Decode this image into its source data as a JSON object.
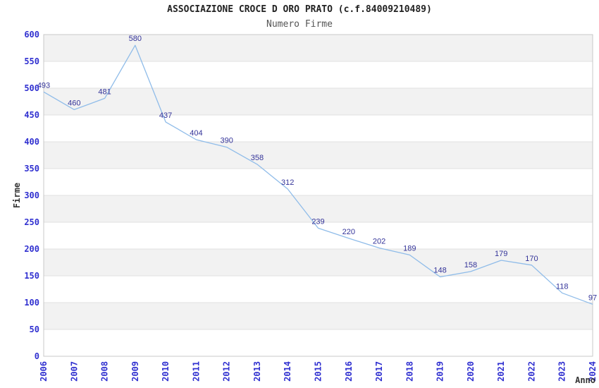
{
  "title": {
    "text": "ASSOCIAZIONE CROCE D ORO PRATO (c.f.84009210489)",
    "color": "#222222"
  },
  "subtitle": {
    "text": "Numero Firme",
    "color": "#555555"
  },
  "chart_data": {
    "type": "line",
    "x": [
      2006,
      2007,
      2008,
      2009,
      2010,
      2011,
      2012,
      2013,
      2014,
      2015,
      2016,
      2017,
      2018,
      2019,
      2020,
      2021,
      2022,
      2023,
      2024
    ],
    "series": [
      {
        "name": "Numero Firme",
        "values": [
          493,
          460,
          481,
          580,
          437,
          404,
          390,
          358,
          312,
          239,
          220,
          202,
          189,
          148,
          158,
          179,
          170,
          118,
          97
        ]
      }
    ],
    "title": "ASSOCIAZIONE CROCE D ORO PRATO (c.f.84009210489)",
    "subtitle": "Numero Firme",
    "xlabel": "Anno",
    "ylabel": "Firme",
    "ylim": [
      0,
      600
    ],
    "yticks": [
      0,
      50,
      100,
      150,
      200,
      250,
      300,
      350,
      400,
      450,
      500,
      550,
      600
    ],
    "xtick_rotation": 90,
    "legend": "none",
    "grid": "alternating-horizontal-bands",
    "data_labels": "above-points",
    "colors": {
      "line": "#8fbce9",
      "data_label": "#333399",
      "tick_label": "#3030d0",
      "band": "#f2f2f2",
      "gridline": "#e0e0e0",
      "plot_border": "#c8c8c8",
      "axis_title": "#333333"
    }
  }
}
